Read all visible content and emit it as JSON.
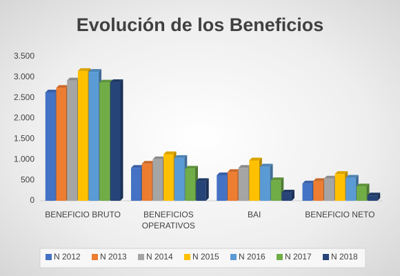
{
  "chart_data": {
    "type": "bar",
    "title": "Evolución de los Beneficios",
    "categories": [
      "BENEFICIO BRUTO",
      "BENEFICIOS OPERATIVOS",
      "BAI",
      "BENEFICIO NETO"
    ],
    "series": [
      {
        "name": "N 2012",
        "color": "#4472c4",
        "values": [
          2630,
          800,
          620,
          420
        ]
      },
      {
        "name": "N 2013",
        "color": "#ed7d31",
        "values": [
          2740,
          900,
          700,
          480
        ]
      },
      {
        "name": "N 2014",
        "color": "#a5a5a5",
        "values": [
          2920,
          1010,
          800,
          540
        ]
      },
      {
        "name": "N 2015",
        "color": "#ffc000",
        "values": [
          3150,
          1130,
          980,
          650
        ]
      },
      {
        "name": "N 2016",
        "color": "#5b9bd5",
        "values": [
          3130,
          1040,
          830,
          560
        ]
      },
      {
        "name": "N 2017",
        "color": "#70ad47",
        "values": [
          2870,
          780,
          500,
          350
        ]
      },
      {
        "name": "N 2018",
        "color": "#264478",
        "values": [
          2880,
          480,
          200,
          130
        ]
      }
    ],
    "ylim": [
      0,
      3500
    ],
    "yticks": [
      0,
      500,
      {
        "value": 1000,
        "label": "1.000"
      },
      {
        "value": 1500,
        "label": "1.500"
      },
      {
        "value": 2000,
        "label": "2.000"
      },
      {
        "value": 2500,
        "label": "2.500"
      },
      {
        "value": 3000,
        "label": "3.000"
      },
      {
        "value": 3500,
        "label": "3.500"
      }
    ],
    "grid": false,
    "legend": "bottom"
  }
}
